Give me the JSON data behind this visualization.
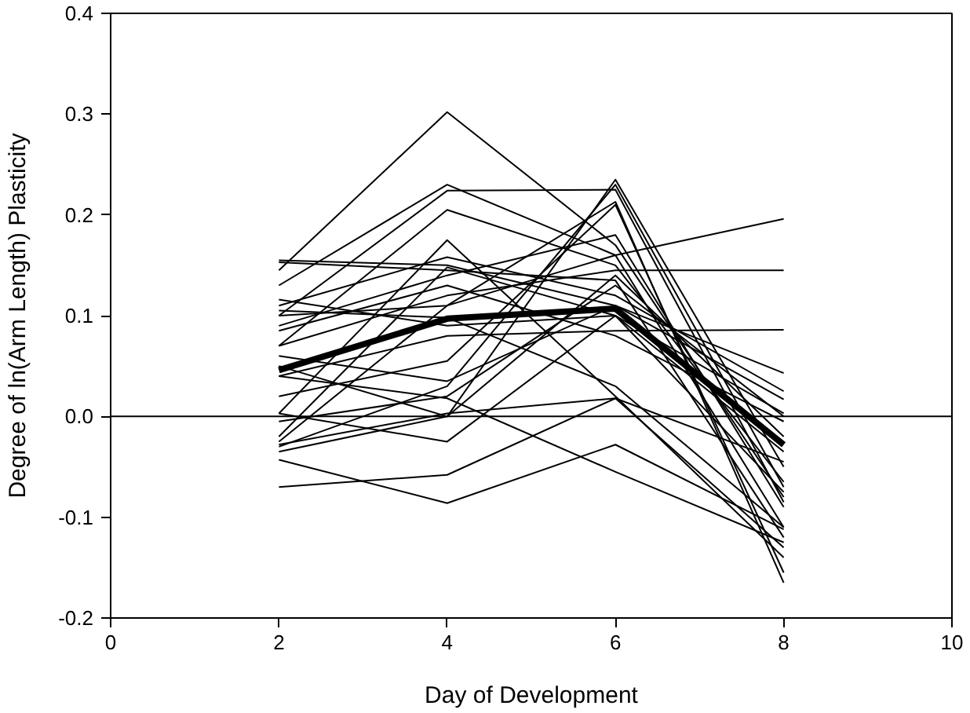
{
  "chart_data": {
    "type": "line",
    "xlabel": "Day of Development",
    "ylabel": "Degree of ln(Arm Length) Plasticity",
    "x": [
      2,
      4,
      6,
      8
    ],
    "xlim": [
      0,
      10
    ],
    "xticks": [
      0,
      2,
      4,
      6,
      8,
      10
    ],
    "ylim": [
      -0.2,
      0.4
    ],
    "yticks": [
      -0.2,
      -0.1,
      {
        "value": 0,
        "label": "0.0"
      },
      0.1,
      0.2,
      0.3,
      0.4
    ],
    "grid": false,
    "marker": "none",
    "line_style": "solid",
    "ref_lines": [
      {
        "axis": "y",
        "value": 0,
        "label": null,
        "color": "#000000"
      }
    ],
    "series": [
      {
        "color": "#000000",
        "values": [
          0.145,
          0.302,
          0.17,
          -0.08
        ]
      },
      {
        "color": "#000000",
        "values": [
          0.13,
          0.23,
          0.16,
          -0.11
        ]
      },
      {
        "color": "#000000",
        "values": [
          0.1,
          0.224,
          0.225,
          -0.085
        ]
      },
      {
        "color": "#000000",
        "values": [
          0.07,
          0.205,
          0.15,
          -0.065
        ]
      },
      {
        "color": "#000000",
        "values": [
          0.003,
          0.175,
          0.02,
          -0.14
        ]
      },
      {
        "color": "#000000",
        "values": [
          0.155,
          0.15,
          0.11,
          0.043
        ]
      },
      {
        "color": "#000000",
        "values": [
          0.153,
          0.145,
          0.135,
          -0.12
        ]
      },
      {
        "color": "#000000",
        "values": [
          0.11,
          0.158,
          0.12,
          0.025
        ]
      },
      {
        "color": "#000000",
        "values": [
          0.07,
          0.12,
          0.145,
          0.145
        ]
      },
      {
        "color": "#000000",
        "values": [
          0.1,
          0.11,
          0.16,
          0.196
        ]
      },
      {
        "color": "#000000",
        "values": [
          0.04,
          0.08,
          0.085,
          0.086
        ]
      },
      {
        "color": "#000000",
        "values": [
          0.085,
          0.13,
          0.08,
          -0.005
        ]
      },
      {
        "color": "#000000",
        "values": [
          -0.035,
          0.0,
          0.235,
          -0.05
        ]
      },
      {
        "color": "#000000",
        "values": [
          -0.03,
          0.03,
          0.23,
          -0.07
        ]
      },
      {
        "color": "#000000",
        "values": [
          0.02,
          0.055,
          0.21,
          -0.155
        ]
      },
      {
        "color": "#000000",
        "values": [
          -0.025,
          0.11,
          0.213,
          -0.165
        ]
      },
      {
        "color": "#000000",
        "values": [
          0.06,
          0.035,
          0.11,
          0.017
        ]
      },
      {
        "color": "#000000",
        "values": [
          0.116,
          0.09,
          0.1,
          0.003
        ]
      },
      {
        "color": "#000000",
        "values": [
          0.05,
          0.0,
          0.14,
          -0.02
        ]
      },
      {
        "color": "#000000",
        "values": [
          -0.005,
          0.02,
          0.13,
          0.0
        ]
      },
      {
        "color": "#000000",
        "values": [
          0.09,
          0.14,
          0.18,
          -0.09
        ]
      },
      {
        "color": "#000000",
        "values": [
          -0.02,
          0.148,
          0.1,
          -0.035
        ]
      },
      {
        "color": "#000000",
        "values": [
          0.105,
          0.098,
          0.03,
          -0.11
        ]
      },
      {
        "color": "#000000",
        "values": [
          0.04,
          0.018,
          -0.055,
          -0.125
        ]
      },
      {
        "color": "#000000",
        "values": [
          0.003,
          -0.025,
          0.1,
          -0.075
        ]
      },
      {
        "color": "#000000",
        "values": [
          -0.028,
          0.003,
          0.018,
          -0.045
        ]
      },
      {
        "color": "#000000",
        "values": [
          -0.07,
          -0.058,
          0.018,
          -0.13
        ]
      },
      {
        "color": "#000000",
        "values": [
          -0.043,
          -0.086,
          -0.028,
          -0.112
        ]
      },
      {
        "color": "#000000",
        "values": [
          0.046,
          0.097,
          0.107,
          -0.028
        ]
      }
    ]
  }
}
